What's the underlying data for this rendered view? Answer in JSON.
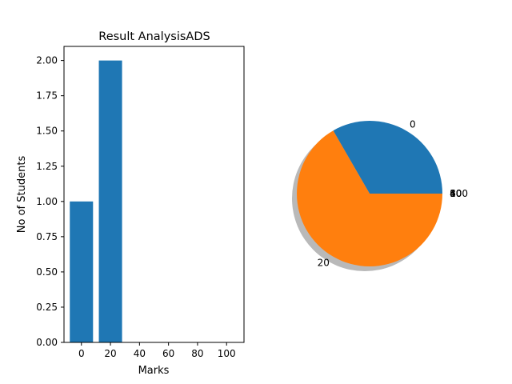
{
  "chart_data": [
    {
      "type": "bar",
      "title": "Result AnalysisADS",
      "xlabel": "Marks",
      "ylabel": "No of Students",
      "categories": [
        0,
        20
      ],
      "values": [
        1,
        2
      ],
      "xticks": [
        "0",
        "20",
        "40",
        "60",
        "80",
        "100"
      ],
      "yticks": [
        "0.00",
        "0.25",
        "0.50",
        "0.75",
        "1.00",
        "1.25",
        "1.50",
        "1.75",
        "2.00"
      ],
      "xlim": [
        -12,
        112
      ],
      "ylim": [
        0,
        2.1
      ],
      "bar_width": 16,
      "color": "#1f77b4",
      "grid": false
    },
    {
      "type": "pie",
      "labels": [
        "0",
        "20",
        "40",
        "60",
        "80",
        "100"
      ],
      "values": [
        1,
        2,
        0,
        0,
        0,
        0
      ],
      "colors": [
        "#1f77b4",
        "#ff7f0e",
        "#2ca02c",
        "#d62728",
        "#9467bd",
        "#8c564b"
      ],
      "shadow": true,
      "start_angle_deg": 0
    }
  ]
}
